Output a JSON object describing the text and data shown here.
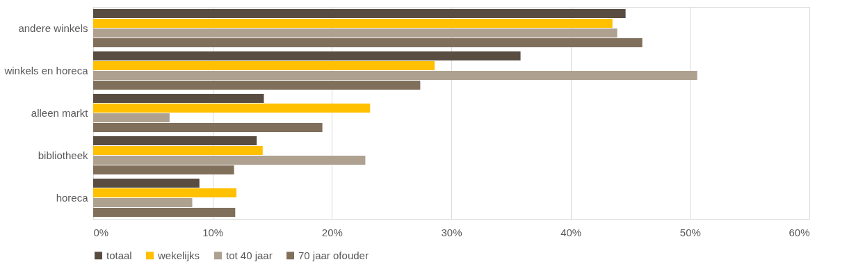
{
  "chart_data": {
    "type": "bar",
    "orientation": "horizontal",
    "categories": [
      "andere winkels",
      "winkels en horeca",
      "alleen markt",
      "bibliotheek",
      "horeca"
    ],
    "series": [
      {
        "name": "totaal",
        "color": "#594d42",
        "values": [
          44.6,
          35.8,
          14.3,
          13.7,
          8.9
        ]
      },
      {
        "name": "wekelijks",
        "color": "#ffc000",
        "values": [
          43.5,
          28.6,
          23.2,
          14.2,
          12.0
        ]
      },
      {
        "name": "tot 40 jaar",
        "color": "#aea190",
        "values": [
          43.9,
          50.6,
          6.4,
          22.8,
          8.3
        ]
      },
      {
        "name": "70 jaar ofouder",
        "color": "#7f6f5b",
        "values": [
          46.0,
          27.4,
          19.2,
          11.8,
          11.9
        ]
      }
    ],
    "xlim": [
      0,
      60
    ],
    "xticks": [
      {
        "value": 0,
        "label": "0%"
      },
      {
        "value": 10,
        "label": "10%"
      },
      {
        "value": 20,
        "label": "20%"
      },
      {
        "value": 30,
        "label": "30%"
      },
      {
        "value": 40,
        "label": "40%"
      },
      {
        "value": 50,
        "label": "50%"
      },
      {
        "value": 60,
        "label": "60%"
      }
    ],
    "grid": "x",
    "legend": "bottom"
  }
}
